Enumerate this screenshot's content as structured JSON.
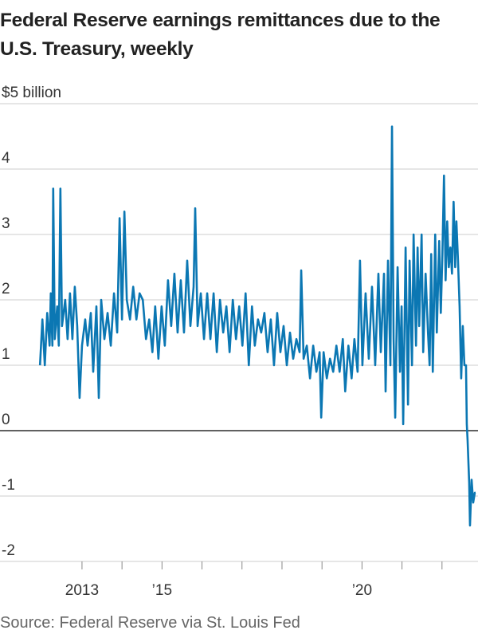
{
  "chart_data": {
    "type": "line",
    "title": "Federal Reserve earnings remittances due to the U.S. Treasury, weekly",
    "source": "Source: Federal Reserve via St. Louis Fed",
    "color": "#0b77b3",
    "xlim": [
      2010.95,
      2022.9
    ],
    "xticks": [
      {
        "value": 2013,
        "label": "2013"
      },
      {
        "value": 2015,
        "label": "’15"
      },
      {
        "value": 2020,
        "label": "’20"
      }
    ],
    "xminor_ticks": [
      2014,
      2016,
      2017,
      2018,
      2019,
      2021,
      2022
    ],
    "ylim": [
      -2,
      5
    ],
    "yticks": [
      {
        "value": 5,
        "label": "$5 billion"
      },
      4,
      3,
      2,
      1,
      0,
      -1,
      -2
    ],
    "grid": true,
    "x": [
      2011.95,
      2012.01,
      2012.07,
      2012.13,
      2012.19,
      2012.22,
      2012.26,
      2012.28,
      2012.32,
      2012.38,
      2012.42,
      2012.46,
      2012.5,
      2012.58,
      2012.64,
      2012.7,
      2012.76,
      2012.82,
      2012.88,
      2012.94,
      2013.0,
      2013.08,
      2013.14,
      2013.22,
      2013.28,
      2013.36,
      2013.42,
      2013.48,
      2013.56,
      2013.64,
      2013.72,
      2013.8,
      2013.88,
      2013.94,
      2014.0,
      2014.06,
      2014.12,
      2014.2,
      2014.28,
      2014.36,
      2014.44,
      2014.52,
      2014.6,
      2014.68,
      2014.76,
      2014.83,
      2014.91,
      2014.99,
      2015.07,
      2015.15,
      2015.23,
      2015.31,
      2015.39,
      2015.47,
      2015.55,
      2015.63,
      2015.71,
      2015.79,
      2015.83,
      2015.89,
      2015.97,
      2016.05,
      2016.13,
      2016.21,
      2016.29,
      2016.37,
      2016.45,
      2016.53,
      2016.61,
      2016.69,
      2016.77,
      2016.85,
      2016.93,
      2017.01,
      2017.09,
      2017.17,
      2017.25,
      2017.32,
      2017.4,
      2017.48,
      2017.56,
      2017.64,
      2017.72,
      2017.8,
      2017.88,
      2017.96,
      2018.04,
      2018.12,
      2018.2,
      2018.28,
      2018.36,
      2018.44,
      2018.48,
      2018.54,
      2018.62,
      2018.7,
      2018.78,
      2018.86,
      2018.94,
      2018.98,
      2019.04,
      2019.12,
      2019.2,
      2019.28,
      2019.36,
      2019.44,
      2019.52,
      2019.58,
      2019.66,
      2019.74,
      2019.81,
      2019.89,
      2019.95,
      2020.01,
      2020.09,
      2020.17,
      2020.25,
      2020.33,
      2020.41,
      2020.47,
      2020.55,
      2020.59,
      2020.65,
      2020.71,
      2020.75,
      2020.79,
      2020.83,
      2020.89,
      2020.95,
      2020.99,
      2021.03,
      2021.09,
      2021.15,
      2021.19,
      2021.25,
      2021.29,
      2021.35,
      2021.39,
      2021.43,
      2021.49,
      2021.53,
      2021.59,
      2021.65,
      2021.69,
      2021.73,
      2021.77,
      2021.83,
      2021.87,
      2021.93,
      2021.97,
      2022.01,
      2022.05,
      2022.09,
      2022.13,
      2022.17,
      2022.21,
      2022.25,
      2022.29,
      2022.33,
      2022.36,
      2022.4,
      2022.44,
      2022.48,
      2022.52,
      2022.56,
      2022.6,
      2022.62,
      2022.64,
      2022.68,
      2022.7,
      2022.74,
      2022.78,
      2022.82,
      2022.84
    ],
    "values": [
      1.0,
      1.7,
      1.0,
      1.8,
      1.3,
      2.1,
      1.3,
      3.7,
      1.4,
      1.9,
      1.3,
      3.7,
      1.6,
      2.0,
      1.4,
      2.1,
      1.4,
      2.2,
      1.6,
      0.5,
      1.3,
      1.7,
      1.3,
      1.8,
      0.9,
      1.9,
      0.5,
      2.0,
      1.4,
      1.8,
      1.3,
      2.1,
      1.5,
      3.25,
      1.7,
      3.35,
      2.0,
      1.7,
      2.2,
      1.7,
      2.1,
      2.0,
      1.4,
      1.7,
      1.2,
      1.9,
      1.1,
      1.9,
      1.3,
      2.3,
      1.6,
      2.4,
      1.5,
      2.3,
      1.5,
      2.6,
      1.6,
      2.2,
      3.4,
      1.6,
      2.1,
      1.4,
      2.1,
      1.4,
      2.1,
      1.2,
      2.0,
      1.5,
      1.9,
      1.2,
      2.0,
      1.4,
      1.9,
      1.3,
      2.1,
      1.0,
      1.9,
      1.3,
      1.7,
      1.5,
      1.8,
      1.2,
      1.7,
      1.0,
      1.8,
      1.2,
      1.6,
      1.0,
      1.5,
      1.1,
      1.4,
      1.2,
      2.45,
      1.1,
      1.3,
      0.8,
      1.3,
      0.9,
      1.2,
      0.2,
      1.2,
      0.8,
      1.1,
      0.9,
      1.3,
      0.9,
      1.4,
      0.6,
      1.3,
      0.8,
      1.4,
      0.9,
      2.6,
      1.0,
      2.1,
      1.1,
      2.2,
      1.0,
      2.4,
      1.2,
      2.4,
      0.6,
      2.6,
      1.0,
      4.65,
      1.4,
      0.2,
      2.5,
      0.9,
      1.9,
      0.1,
      2.8,
      0.4,
      2.6,
      1.0,
      3.0,
      1.3,
      2.8,
      1.6,
      3.0,
      1.2,
      2.4,
      1.5,
      1.0,
      2.7,
      0.9,
      3.0,
      1.5,
      2.9,
      1.8,
      2.7,
      3.9,
      2.3,
      3.2,
      2.5,
      2.8,
      2.4,
      3.5,
      2.5,
      3.2,
      2.6,
      1.9,
      0.8,
      1.6,
      1.0,
      1.0,
      0.1,
      -0.15,
      -0.8,
      -1.45,
      -0.75,
      -1.1,
      -0.95,
      -0.95
    ]
  }
}
